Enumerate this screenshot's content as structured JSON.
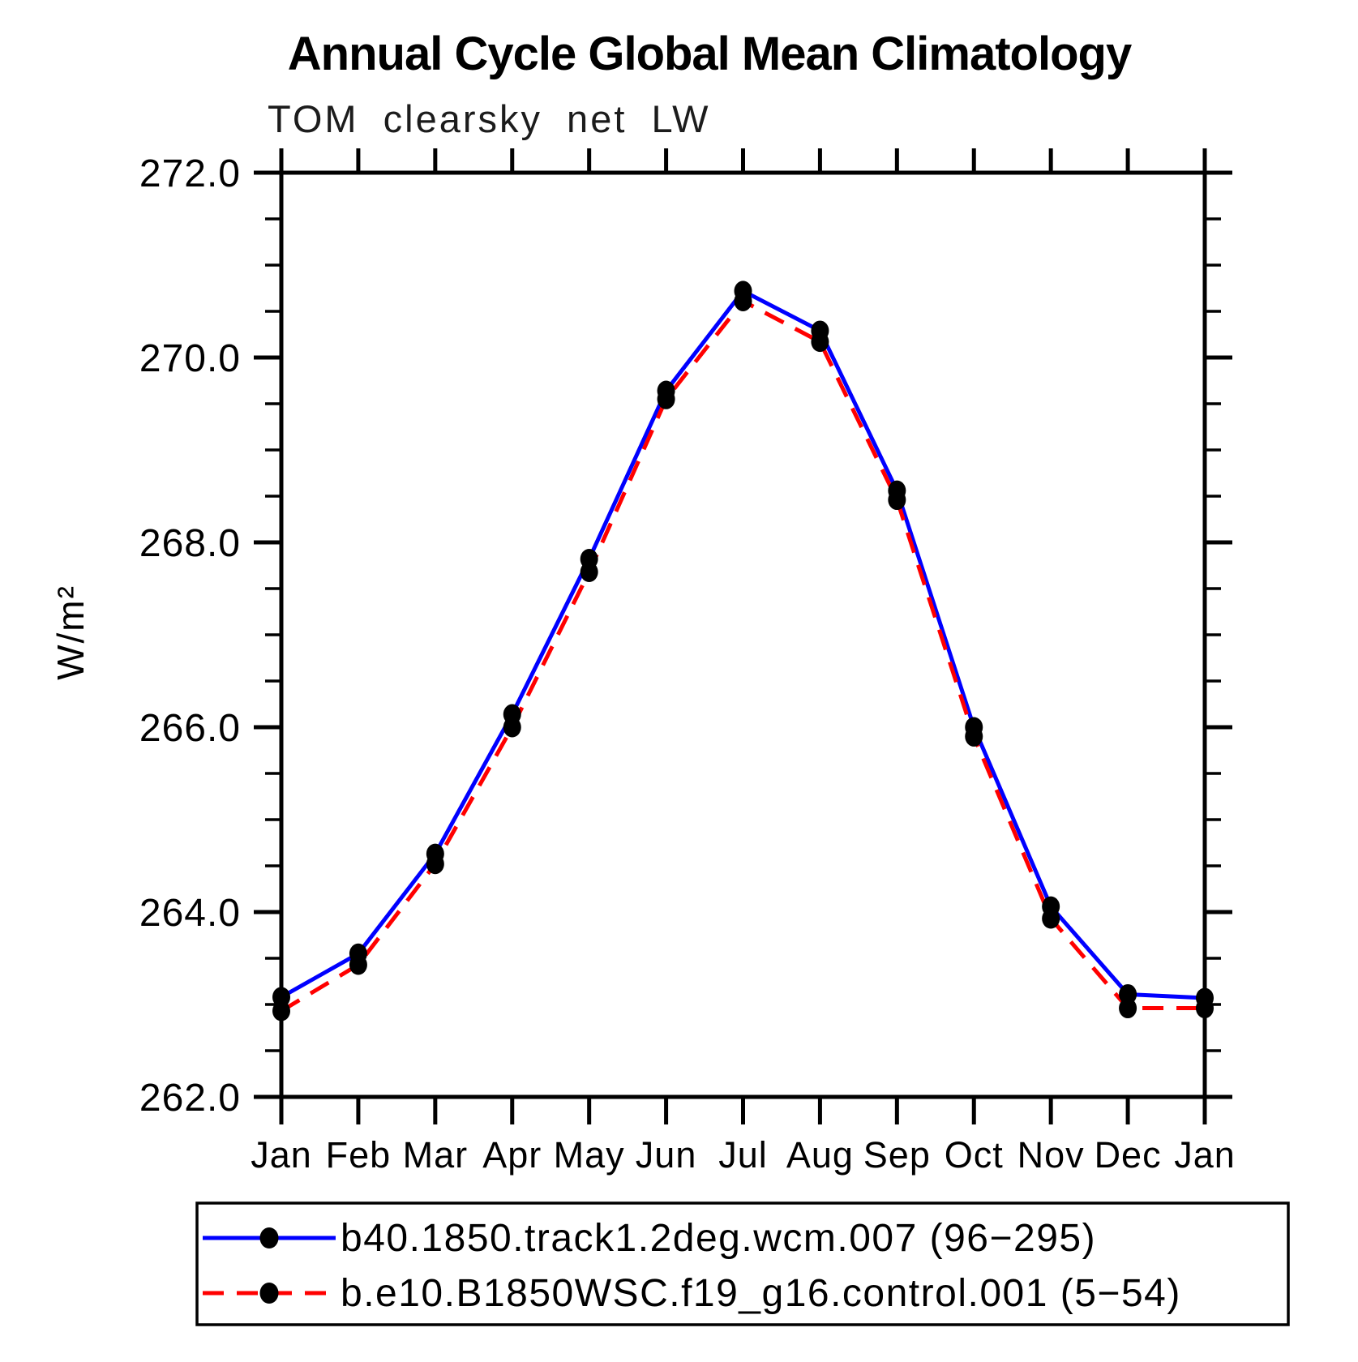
{
  "page": {
    "background": "#ffffff",
    "axis_color": "#000000"
  },
  "chart_data": {
    "type": "line",
    "title": "Annual Cycle Global Mean Climatology",
    "subtitle": "TOM clearsky net LW",
    "ylabel": "W/m²",
    "xlabel": "",
    "categories": [
      "Jan",
      "Feb",
      "Mar",
      "Apr",
      "May",
      "Jun",
      "Jul",
      "Aug",
      "Sep",
      "Oct",
      "Nov",
      "Dec",
      "Jan"
    ],
    "ylim": [
      262.0,
      272.0
    ],
    "y_major_ticks": [
      {
        "value": 262.0,
        "label": "262.0"
      },
      {
        "value": 264.0,
        "label": "264.0"
      },
      {
        "value": 266.0,
        "label": "266.0"
      },
      {
        "value": 268.0,
        "label": "268.0"
      },
      {
        "value": 270.0,
        "label": "270.0"
      },
      {
        "value": 272.0,
        "label": "272.0"
      }
    ],
    "y_minor_step": 0.5,
    "grid": false,
    "legend_position": "bottom",
    "series": [
      {
        "name": "b40.1850.track1.2deg.wcm.007 (96−295)",
        "color": "#0000ff",
        "line_style": "solid",
        "marker": "filled-circle",
        "marker_color": "#000000",
        "values": [
          263.08,
          263.55,
          264.63,
          266.14,
          267.82,
          269.64,
          270.72,
          270.29,
          268.56,
          266.0,
          264.06,
          263.11,
          263.07
        ]
      },
      {
        "name": "b.e10.B1850WSC.f19_g16.control.001 (5−54)",
        "color": "#ff0000",
        "line_style": "dashed",
        "marker": "filled-circle",
        "marker_color": "#000000",
        "values": [
          262.93,
          263.43,
          264.52,
          266.0,
          267.68,
          269.55,
          270.61,
          270.17,
          268.46,
          265.9,
          263.93,
          262.96,
          262.96
        ]
      }
    ]
  }
}
